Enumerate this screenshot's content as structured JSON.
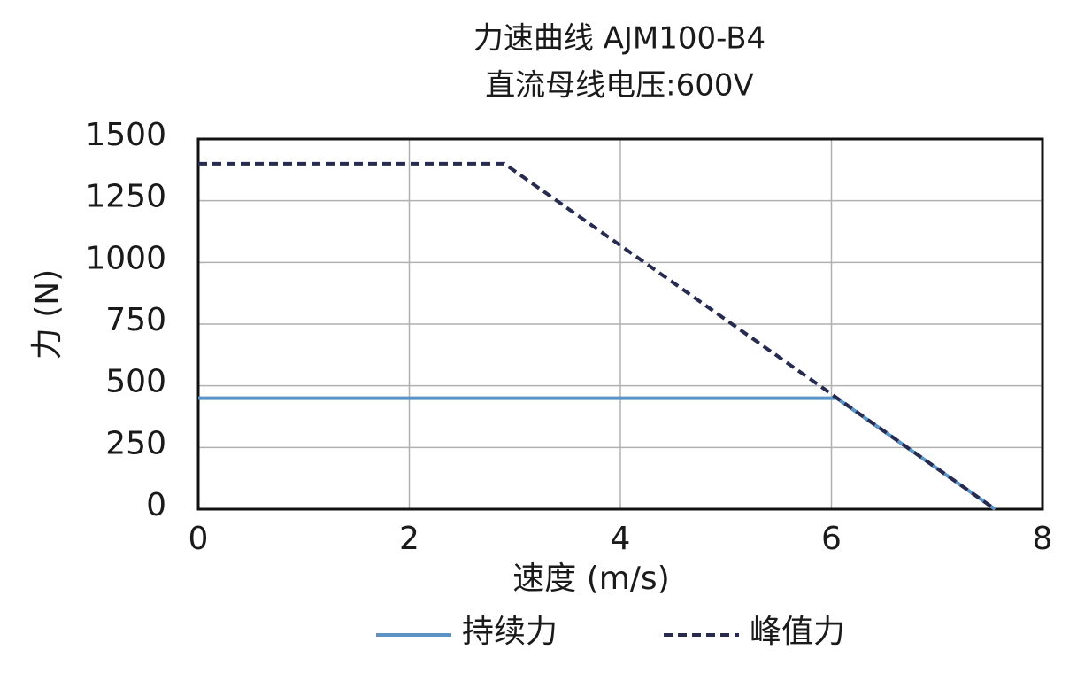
{
  "chart_data": {
    "type": "line",
    "title": "力速曲线 AJM100-B4",
    "subtitle": "直流母线电压:600V",
    "x_label": "速度 (m/s)",
    "y_label": "力 (N)",
    "xlim": [
      0,
      8
    ],
    "xticks": [
      0,
      2,
      4,
      6,
      8
    ],
    "ylim": [
      0,
      1500
    ],
    "yticks": [
      0,
      250,
      500,
      750,
      1000,
      1250,
      1500
    ],
    "grid": true,
    "legend": "bottom",
    "series": [
      {
        "name": "持续力",
        "color": "#5b93c7",
        "dash": false,
        "x": [
          0,
          6.05,
          7.55
        ],
        "values": [
          450,
          450,
          0
        ]
      },
      {
        "name": "峰值力",
        "color": "#262b4f",
        "dash": true,
        "x": [
          0,
          2.9,
          7.55
        ],
        "values": [
          1400,
          1400,
          0
        ]
      }
    ]
  }
}
